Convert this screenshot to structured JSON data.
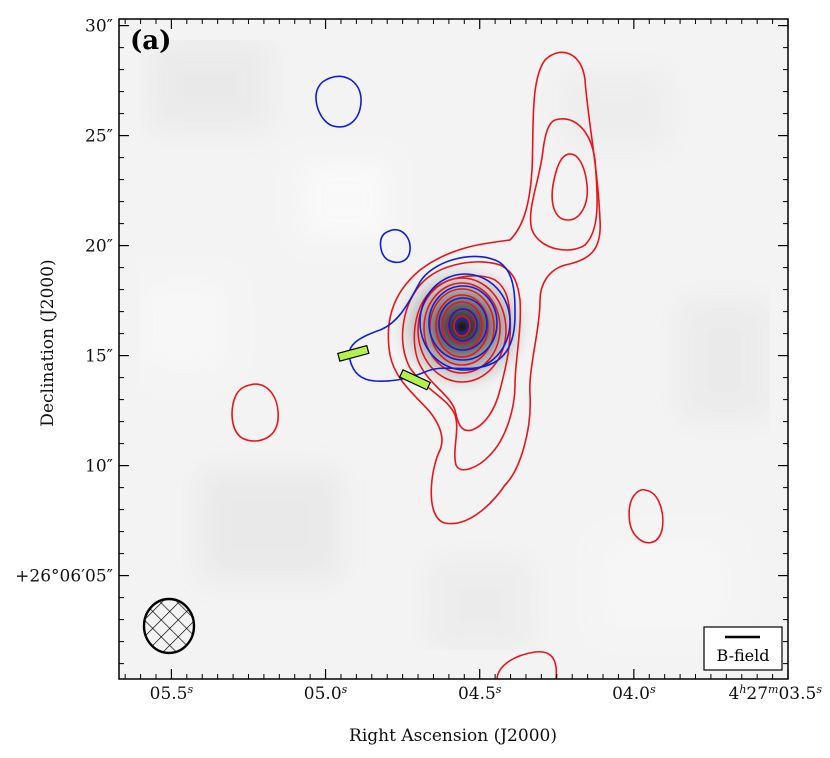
{
  "chart_data": {
    "type": "contour",
    "panel_label": "(a)",
    "xlabel": "Right Ascension (J2000)",
    "ylabel": "Declination (J2000)",
    "x_ticks": [
      {
        "value": 5.5,
        "label": "05.5",
        "unit": "s"
      },
      {
        "value": 5.0,
        "label": "05.0",
        "unit": "s"
      },
      {
        "value": 4.5,
        "label": "04.5",
        "unit": "s"
      },
      {
        "value": 4.0,
        "label": "04.0",
        "unit": "s"
      },
      {
        "value": 3.5,
        "label": "4h27m03.5",
        "unit": "s"
      }
    ],
    "y_ticks": [
      {
        "value": 30,
        "label": "30″"
      },
      {
        "value": 25,
        "label": "25″"
      },
      {
        "value": 20,
        "label": "20″"
      },
      {
        "value": 15,
        "label": "15″"
      },
      {
        "value": 10,
        "label": "10″"
      },
      {
        "value": 5,
        "label": "+26°06′05″"
      }
    ],
    "xlim": [
      5.67,
      3.5
    ],
    "ylim": [
      0.3,
      30.3
    ],
    "peak": {
      "ra_s": 4.5,
      "dec_arcsec": 16.4
    },
    "red_contours": {
      "color": "#e8141a",
      "component": "main",
      "levels": 12
    },
    "blue_contours": {
      "color": "#1020d8",
      "levels": 6
    },
    "bfield_segments": [
      {
        "ra_s": 4.91,
        "dec_arcsec": 15.1,
        "angle_deg": 75,
        "color": "#b2f24a"
      },
      {
        "ra_s": 4.71,
        "dec_arcsec": 13.9,
        "angle_deg": -65,
        "color": "#b2f24a"
      }
    ],
    "beam": {
      "ra_s": 5.5,
      "dec_arcsec": 2.7,
      "shape": "ellipse"
    },
    "legend": {
      "label": "B-field",
      "position": "bottom-right"
    },
    "colors": {
      "red": "#e8141a",
      "blue": "#1020d8",
      "bfield": "#b2f24a",
      "background": "#f2f2f2"
    }
  }
}
